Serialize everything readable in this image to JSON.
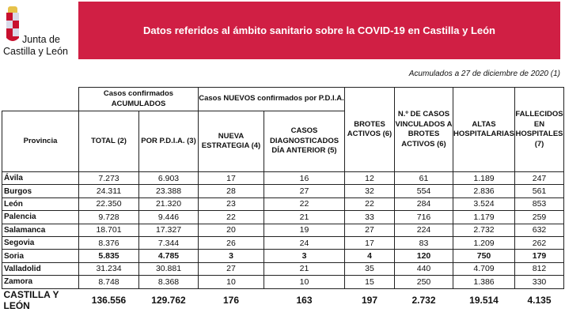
{
  "logo": {
    "line1": "Junta de",
    "line2": "Castilla y León"
  },
  "header": {
    "title": "Datos referidos al ámbito sanitario sobre la COVID-19 en Castilla y León",
    "color": "#d01f44"
  },
  "subtitle": "Acumulados a 27 de diciembre de 2020 (1)",
  "table": {
    "group_headers": {
      "acumulados": "Casos confirmados ACUMULADOS",
      "nuevos": "Casos NUEVOS confirmados por P.D.I.A."
    },
    "columns": [
      "Provincia",
      "TOTAL (2)",
      "POR P.D.I.A. (3)",
      "NUEVA ESTRATEGIA (4)",
      "CASOS DIAGNOSTICADOS DÍA ANTERIOR (5)",
      "BROTES ACTIVOS (6)",
      "N.º DE CASOS VINCULADOS A BROTES ACTIVOS (6)",
      "ALTAS HOSPITALARIAS",
      "FALLECIDOS EN HOSPITALES (7)"
    ],
    "rows": [
      [
        "Ávila",
        "7.273",
        "6.903",
        "17",
        "16",
        "12",
        "61",
        "1.189",
        "247"
      ],
      [
        "Burgos",
        "24.311",
        "23.388",
        "28",
        "27",
        "32",
        "554",
        "2.836",
        "561"
      ],
      [
        "León",
        "22.350",
        "21.320",
        "23",
        "22",
        "22",
        "284",
        "3.524",
        "853"
      ],
      [
        "Palencia",
        "9.728",
        "9.446",
        "22",
        "21",
        "33",
        "716",
        "1.179",
        "259"
      ],
      [
        "Salamanca",
        "18.701",
        "17.327",
        "20",
        "19",
        "27",
        "224",
        "2.732",
        "632"
      ],
      [
        "Segovia",
        "8.376",
        "7.344",
        "26",
        "24",
        "17",
        "83",
        "1.209",
        "262"
      ],
      [
        "Soria",
        "5.835",
        "4.785",
        "3",
        "3",
        "4",
        "120",
        "750",
        "179"
      ],
      [
        "Valladolid",
        "31.234",
        "30.881",
        "27",
        "21",
        "35",
        "440",
        "4.709",
        "812"
      ],
      [
        "Zamora",
        "8.748",
        "8.368",
        "10",
        "10",
        "15",
        "250",
        "1.386",
        "330"
      ]
    ],
    "highlighted_row": "Soria",
    "total": [
      "CASTILLA Y LEÓN",
      "136.556",
      "129.762",
      "176",
      "163",
      "197",
      "2.732",
      "19.514",
      "4.135"
    ]
  }
}
